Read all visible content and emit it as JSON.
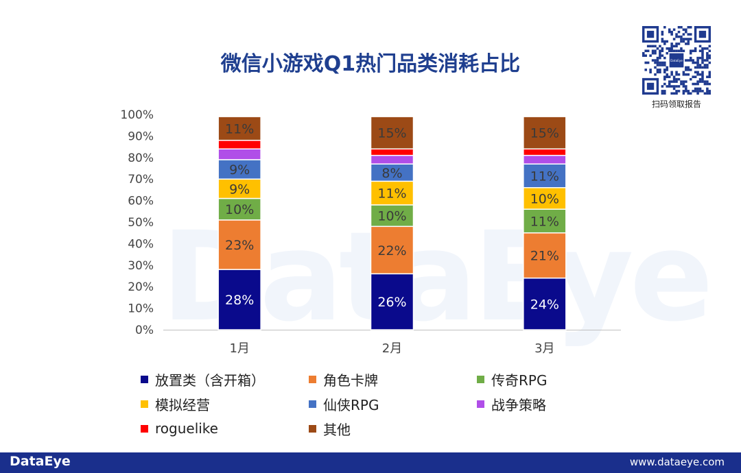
{
  "watermark": "DataEye",
  "qr": {
    "caption": "扫码领取报告",
    "center_text": "DataEye"
  },
  "footer": {
    "logo": "DataEye",
    "url": "www.dataeye.com"
  },
  "chart_data": {
    "type": "bar",
    "stacked": true,
    "title": "微信小游戏Q1热门品类消耗占比",
    "xlabel": "",
    "ylabel": "",
    "categories": [
      "1月",
      "2月",
      "3月"
    ],
    "ylim": [
      0,
      100
    ],
    "yticks": [
      "0%",
      "10%",
      "20%",
      "30%",
      "40%",
      "50%",
      "60%",
      "70%",
      "80%",
      "90%",
      "100%"
    ],
    "legend_position": "bottom",
    "series": [
      {
        "name": "放置类（含开箱）",
        "color": "#0a0a8c",
        "values": [
          28,
          26,
          24
        ],
        "labels": [
          "28%",
          "26%",
          "24%"
        ]
      },
      {
        "name": "角色卡牌",
        "color": "#ed7d31",
        "values": [
          23,
          22,
          21
        ],
        "labels": [
          "23%",
          "22%",
          "21%"
        ]
      },
      {
        "name": "传奇RPG",
        "color": "#70ad47",
        "values": [
          10,
          10,
          11
        ],
        "labels": [
          "10%",
          "10%",
          "11%"
        ]
      },
      {
        "name": "模拟经营",
        "color": "#ffc000",
        "values": [
          9,
          11,
          10
        ],
        "labels": [
          "9%",
          "11%",
          "10%"
        ]
      },
      {
        "name": "仙侠RPG",
        "color": "#4472c4",
        "values": [
          9,
          8,
          11
        ],
        "labels": [
          "9%",
          "8%",
          "11%"
        ]
      },
      {
        "name": "战争策略",
        "color": "#b04ee8",
        "values": [
          5,
          4,
          4
        ],
        "labels": [
          "",
          "",
          ""
        ]
      },
      {
        "name": "roguelike",
        "color": "#ff0000",
        "values": [
          4,
          3,
          3
        ],
        "labels": [
          "",
          "",
          ""
        ]
      },
      {
        "name": "其他",
        "color": "#9c4a16",
        "values": [
          11,
          15,
          15
        ],
        "labels": [
          "11%",
          "15%",
          "15%"
        ]
      }
    ]
  }
}
